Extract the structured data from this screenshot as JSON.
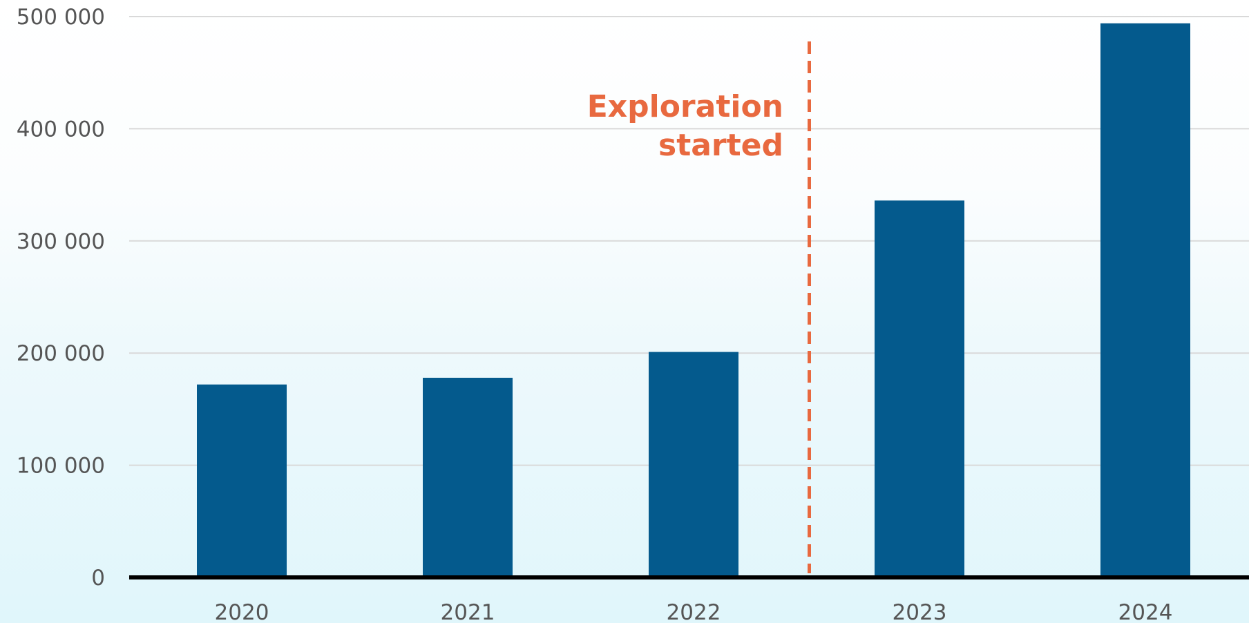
{
  "chart_data": {
    "type": "bar",
    "categories": [
      "2020",
      "2021",
      "2022",
      "2023",
      "2024"
    ],
    "values": [
      172000,
      178000,
      201000,
      336000,
      494000
    ],
    "ylim": [
      0,
      500000
    ],
    "y_ticks": [
      0,
      100000,
      200000,
      300000,
      400000,
      500000
    ],
    "y_tick_labels": [
      "0",
      "100 000",
      "200 000",
      "300 000",
      "400 000",
      "500 000"
    ],
    "grid": true,
    "title": "",
    "xlabel": "",
    "ylabel": "",
    "annotation": {
      "text_lines": [
        "Exploration",
        "started"
      ],
      "position": "between 2022 and 2023",
      "style": "dashed vertical line"
    },
    "colors": {
      "bar": "#045a8d",
      "annotation": "#e8693f",
      "grid": "#d9d9d9",
      "axis": "#000000",
      "tick_text": "#555555"
    }
  }
}
